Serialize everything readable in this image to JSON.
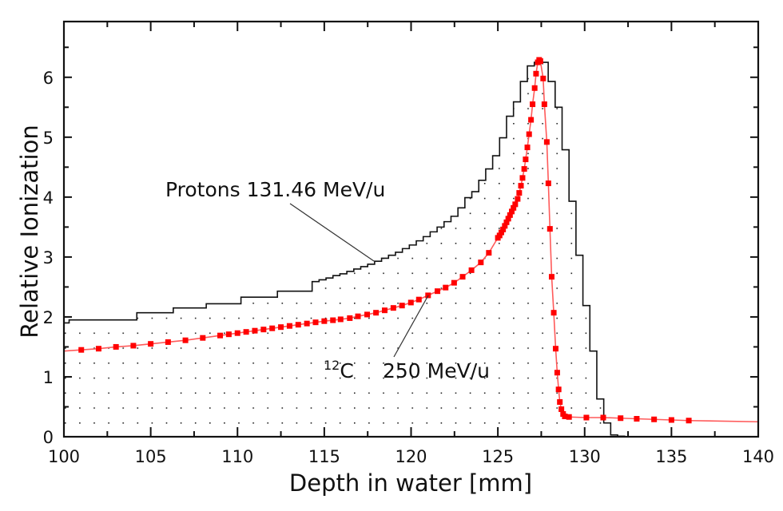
{
  "chart_data": {
    "type": "line",
    "title": "",
    "xlabel": "Depth in water [mm]",
    "ylabel": "Relative Ionization",
    "xlim": [
      100,
      140
    ],
    "ylim": [
      0,
      6.93
    ],
    "xticks": [
      "100",
      "105",
      "110",
      "115",
      "120",
      "125",
      "130",
      "135",
      "140"
    ],
    "yticks": [
      "0",
      "1",
      "2",
      "3",
      "4",
      "5",
      "6"
    ],
    "grid": false,
    "colors": {
      "proton": "#111111",
      "carbon": "#ff0000",
      "carbon_line": "#ff6a6a"
    },
    "series": [
      {
        "name": "Protons 131.46 MeV/u",
        "kind": "histogram",
        "edges": [
          100,
          100.3,
          104.2,
          106.3,
          108.2,
          110.2,
          112.3,
          114.3,
          114.7,
          115.1,
          115.5,
          115.9,
          116.3,
          116.7,
          117.1,
          117.5,
          117.9,
          118.3,
          118.7,
          119.1,
          119.5,
          119.9,
          120.3,
          120.7,
          121.1,
          121.5,
          121.9,
          122.3,
          122.7,
          123.1,
          123.5,
          123.9,
          124.3,
          124.7,
          125.1,
          125.5,
          125.9,
          126.3,
          126.7,
          127.1,
          127.9,
          128.3,
          128.7,
          129.1,
          129.5,
          129.9,
          130.3,
          130.7,
          131.1,
          131.5,
          131.9,
          132.3
        ],
        "values": [
          1.9,
          1.95,
          2.07,
          2.15,
          2.22,
          2.33,
          2.43,
          2.59,
          2.62,
          2.65,
          2.69,
          2.72,
          2.76,
          2.8,
          2.84,
          2.88,
          2.93,
          2.98,
          3.03,
          3.08,
          3.14,
          3.2,
          3.27,
          3.34,
          3.42,
          3.5,
          3.59,
          3.68,
          3.82,
          3.99,
          4.09,
          4.28,
          4.47,
          4.69,
          4.99,
          5.35,
          5.59,
          5.93,
          6.19,
          6.25,
          5.93,
          5.5,
          4.79,
          3.93,
          3.03,
          2.19,
          1.43,
          0.63,
          0.23,
          0.03,
          0.01
        ]
      },
      {
        "name": "12C 250 MeV/u",
        "kind": "line-markers",
        "line_start": [
          100,
          1.43
        ],
        "line_end": [
          140,
          0.25
        ],
        "points": [
          [
            101,
            1.45
          ],
          [
            102,
            1.47
          ],
          [
            103,
            1.5
          ],
          [
            104,
            1.52
          ],
          [
            105,
            1.55
          ],
          [
            106,
            1.58
          ],
          [
            107,
            1.61
          ],
          [
            108,
            1.65
          ],
          [
            109,
            1.69
          ],
          [
            109.5,
            1.71
          ],
          [
            110,
            1.73
          ],
          [
            110.5,
            1.75
          ],
          [
            111,
            1.77
          ],
          [
            111.5,
            1.79
          ],
          [
            112,
            1.81
          ],
          [
            112.5,
            1.83
          ],
          [
            113,
            1.85
          ],
          [
            113.5,
            1.87
          ],
          [
            114,
            1.89
          ],
          [
            114.5,
            1.91
          ],
          [
            115,
            1.93
          ],
          [
            115.5,
            1.945
          ],
          [
            115.94,
            1.96
          ],
          [
            116.47,
            1.98
          ],
          [
            116.94,
            2.01
          ],
          [
            117.47,
            2.04
          ],
          [
            117.98,
            2.07
          ],
          [
            118.48,
            2.11
          ],
          [
            118.98,
            2.15
          ],
          [
            119.48,
            2.19
          ],
          [
            119.99,
            2.24
          ],
          [
            120.45,
            2.29
          ],
          [
            120.98,
            2.36
          ],
          [
            121.52,
            2.43
          ],
          [
            121.99,
            2.49
          ],
          [
            122.48,
            2.57
          ],
          [
            122.97,
            2.67
          ],
          [
            123.48,
            2.78
          ],
          [
            124.02,
            2.91
          ],
          [
            124.48,
            3.07
          ],
          [
            125.0,
            3.32
          ],
          [
            125.1,
            3.36
          ],
          [
            125.2,
            3.41
          ],
          [
            125.3,
            3.46
          ],
          [
            125.4,
            3.52
          ],
          [
            125.5,
            3.58
          ],
          [
            125.6,
            3.64
          ],
          [
            125.7,
            3.7
          ],
          [
            125.8,
            3.76
          ],
          [
            125.9,
            3.82
          ],
          [
            126.0,
            3.88
          ],
          [
            126.14,
            3.97
          ],
          [
            126.23,
            4.07
          ],
          [
            126.33,
            4.19
          ],
          [
            126.42,
            4.32
          ],
          [
            126.52,
            4.47
          ],
          [
            126.6,
            4.63
          ],
          [
            126.7,
            4.83
          ],
          [
            126.8,
            5.05
          ],
          [
            126.91,
            5.29
          ],
          [
            127.0,
            5.55
          ],
          [
            127.12,
            5.82
          ],
          [
            127.2,
            6.06
          ],
          [
            127.3,
            6.25
          ],
          [
            127.38,
            6.29
          ],
          [
            127.45,
            6.27
          ],
          [
            127.61,
            5.98
          ],
          [
            127.68,
            5.55
          ],
          [
            127.82,
            4.92
          ],
          [
            127.91,
            4.23
          ],
          [
            128.0,
            3.47
          ],
          [
            128.1,
            2.67
          ],
          [
            128.22,
            2.07
          ],
          [
            128.33,
            1.47
          ],
          [
            128.42,
            1.07
          ],
          [
            128.5,
            0.79
          ],
          [
            128.57,
            0.58
          ],
          [
            128.66,
            0.46
          ],
          [
            128.76,
            0.38
          ],
          [
            128.86,
            0.34
          ],
          [
            129.1,
            0.33
          ],
          [
            130.1,
            0.32
          ],
          [
            131.07,
            0.32
          ],
          [
            132.07,
            0.31
          ],
          [
            133,
            0.3
          ],
          [
            134,
            0.29
          ],
          [
            135,
            0.28
          ],
          [
            136,
            0.27
          ]
        ]
      }
    ],
    "annotations": {
      "proton_label": "Protons 131.46 MeV/u",
      "carbon_mass": "12",
      "carbon_symbol": "C",
      "carbon_energy": "250 MeV/u"
    }
  }
}
